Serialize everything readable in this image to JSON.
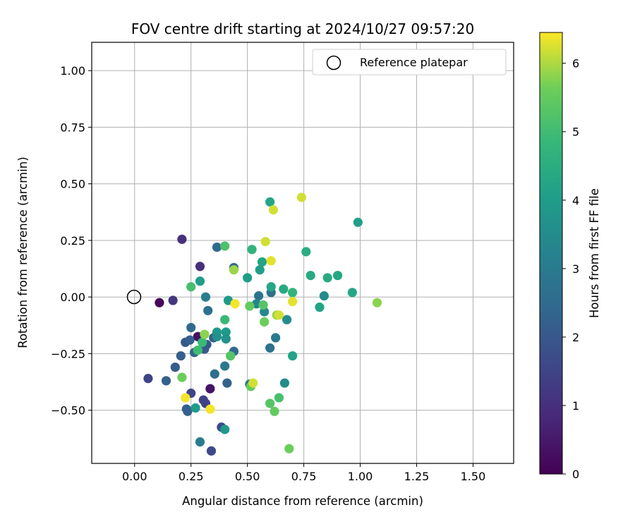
{
  "chart_data": {
    "type": "scatter",
    "title": "FOV centre drift starting at 2024/10/27 09:57:20",
    "xlabel": "Angular distance from reference (arcmin)",
    "ylabel": "Rotation from reference (arcmin)",
    "xlim": [
      -0.19,
      1.68
    ],
    "ylim": [
      -0.735,
      1.125
    ],
    "x_ticks": [
      0.0,
      0.25,
      0.5,
      0.75,
      1.0,
      1.25,
      1.5
    ],
    "x_tick_labels": [
      "0.00",
      "0.25",
      "0.50",
      "0.75",
      "1.00",
      "1.25",
      "1.50"
    ],
    "y_ticks": [
      -0.5,
      -0.25,
      0.0,
      0.25,
      0.5,
      0.75,
      1.0
    ],
    "y_tick_labels": [
      "−0.50",
      "−0.25",
      "0.00",
      "0.25",
      "0.50",
      "0.75",
      "1.00"
    ],
    "grid": true,
    "legend": {
      "position": "top-right",
      "entries": [
        "Reference platepar"
      ]
    },
    "reference_point": {
      "x": 0.0,
      "y": 0.0,
      "name": "Reference platepar"
    },
    "colorbar": {
      "label": "Hours from first FF file",
      "colormap": "viridis",
      "range": [
        0,
        6.45
      ],
      "ticks": [
        0,
        1,
        2,
        3,
        4,
        5,
        6
      ],
      "tick_labels": [
        "0",
        "1",
        "2",
        "3",
        "4",
        "5",
        "6"
      ]
    },
    "points": [
      {
        "x": 0.11,
        "y": -0.025,
        "h": 0.1
      },
      {
        "x": 0.28,
        "y": -0.175,
        "h": 0.3
      },
      {
        "x": 0.335,
        "y": -0.405,
        "h": 0.4
      },
      {
        "x": 0.17,
        "y": -0.015,
        "h": 1.2
      },
      {
        "x": 0.21,
        "y": 0.255,
        "h": 1.0
      },
      {
        "x": 0.29,
        "y": 0.135,
        "h": 1.0
      },
      {
        "x": 0.06,
        "y": -0.36,
        "h": 1.5
      },
      {
        "x": 0.25,
        "y": -0.425,
        "h": 1.5
      },
      {
        "x": 0.305,
        "y": -0.455,
        "h": 1.4
      },
      {
        "x": 0.315,
        "y": -0.47,
        "h": 1.4
      },
      {
        "x": 0.34,
        "y": -0.68,
        "h": 1.6
      },
      {
        "x": 0.385,
        "y": -0.575,
        "h": 1.6
      },
      {
        "x": 0.235,
        "y": -0.505,
        "h": 2.2
      },
      {
        "x": 0.23,
        "y": -0.495,
        "h": 2.2
      },
      {
        "x": 0.14,
        "y": -0.37,
        "h": 2.2
      },
      {
        "x": 0.18,
        "y": -0.31,
        "h": 2.1
      },
      {
        "x": 0.205,
        "y": -0.26,
        "h": 2.2
      },
      {
        "x": 0.225,
        "y": -0.2,
        "h": 2.0
      },
      {
        "x": 0.245,
        "y": -0.19,
        "h": 2.2
      },
      {
        "x": 0.25,
        "y": -0.135,
        "h": 2.5
      },
      {
        "x": 0.265,
        "y": -0.245,
        "h": 2.4
      },
      {
        "x": 0.31,
        "y": -0.23,
        "h": 2.1
      },
      {
        "x": 0.32,
        "y": -0.21,
        "h": 2.0
      },
      {
        "x": 0.35,
        "y": -0.18,
        "h": 2.2
      },
      {
        "x": 0.325,
        "y": -0.06,
        "h": 2.7
      },
      {
        "x": 0.315,
        "y": 0.0,
        "h": 3.1
      },
      {
        "x": 0.365,
        "y": 0.22,
        "h": 2.5
      },
      {
        "x": 0.355,
        "y": -0.34,
        "h": 2.6
      },
      {
        "x": 0.4,
        "y": -0.305,
        "h": 2.9
      },
      {
        "x": 0.41,
        "y": -0.38,
        "h": 2.3
      },
      {
        "x": 0.44,
        "y": -0.24,
        "h": 2.5
      },
      {
        "x": 0.44,
        "y": 0.13,
        "h": 2.4
      },
      {
        "x": 0.29,
        "y": -0.64,
        "h": 3.0
      },
      {
        "x": 0.55,
        "y": 0.005,
        "h": 2.8
      },
      {
        "x": 0.6,
        "y": -0.225,
        "h": 2.7
      },
      {
        "x": 0.605,
        "y": 0.02,
        "h": 2.7
      },
      {
        "x": 0.625,
        "y": -0.18,
        "h": 2.9
      },
      {
        "x": 0.51,
        "y": -0.385,
        "h": 3.0
      },
      {
        "x": 0.54,
        "y": -0.03,
        "h": 3.3
      },
      {
        "x": 0.575,
        "y": -0.065,
        "h": 3.4
      },
      {
        "x": 0.665,
        "y": -0.38,
        "h": 3.5
      },
      {
        "x": 0.675,
        "y": -0.1,
        "h": 3.5
      },
      {
        "x": 0.84,
        "y": 0.005,
        "h": 3.5
      },
      {
        "x": 0.29,
        "y": 0.07,
        "h": 4.0
      },
      {
        "x": 0.365,
        "y": -0.155,
        "h": 3.9
      },
      {
        "x": 0.365,
        "y": -0.175,
        "h": 3.7
      },
      {
        "x": 0.405,
        "y": -0.155,
        "h": 3.9
      },
      {
        "x": 0.405,
        "y": -0.185,
        "h": 3.7
      },
      {
        "x": 0.415,
        "y": -0.015,
        "h": 3.9
      },
      {
        "x": 0.4,
        "y": -0.585,
        "h": 3.9
      },
      {
        "x": 0.27,
        "y": -0.49,
        "h": 4.0
      },
      {
        "x": 0.5,
        "y": 0.085,
        "h": 4.0
      },
      {
        "x": 0.555,
        "y": 0.12,
        "h": 4.1
      },
      {
        "x": 0.565,
        "y": 0.155,
        "h": 4.2
      },
      {
        "x": 0.6,
        "y": 0.42,
        "h": 4.3
      },
      {
        "x": 0.605,
        "y": 0.045,
        "h": 4.3
      },
      {
        "x": 0.66,
        "y": 0.035,
        "h": 4.4
      },
      {
        "x": 0.7,
        "y": -0.26,
        "h": 4.2
      },
      {
        "x": 0.82,
        "y": -0.045,
        "h": 4.2
      },
      {
        "x": 0.99,
        "y": 0.33,
        "h": 4.1
      },
      {
        "x": 0.965,
        "y": 0.02,
        "h": 4.3
      },
      {
        "x": 0.9,
        "y": 0.095,
        "h": 4.3
      },
      {
        "x": 0.855,
        "y": 0.085,
        "h": 4.4
      },
      {
        "x": 0.78,
        "y": 0.095,
        "h": 4.4
      },
      {
        "x": 0.76,
        "y": 0.2,
        "h": 4.5
      },
      {
        "x": 0.7,
        "y": 0.02,
        "h": 4.7
      },
      {
        "x": 0.52,
        "y": 0.21,
        "h": 4.7
      },
      {
        "x": 0.4,
        "y": -0.1,
        "h": 4.9
      },
      {
        "x": 0.3,
        "y": -0.2,
        "h": 4.9
      },
      {
        "x": 0.28,
        "y": -0.235,
        "h": 5.0
      },
      {
        "x": 0.25,
        "y": 0.045,
        "h": 5.1
      },
      {
        "x": 0.4,
        "y": 0.225,
        "h": 5.2
      },
      {
        "x": 0.425,
        "y": -0.26,
        "h": 5.3
      },
      {
        "x": 0.51,
        "y": -0.04,
        "h": 5.5
      },
      {
        "x": 0.515,
        "y": -0.395,
        "h": 5.5
      },
      {
        "x": 0.57,
        "y": -0.035,
        "h": 5.3
      },
      {
        "x": 0.575,
        "y": -0.11,
        "h": 5.6
      },
      {
        "x": 0.6,
        "y": -0.47,
        "h": 5.3
      },
      {
        "x": 0.62,
        "y": -0.505,
        "h": 5.5
      },
      {
        "x": 0.64,
        "y": -0.445,
        "h": 5.1
      },
      {
        "x": 0.685,
        "y": -0.67,
        "h": 5.6
      },
      {
        "x": 0.21,
        "y": -0.355,
        "h": 5.6
      },
      {
        "x": 0.31,
        "y": -0.165,
        "h": 5.8
      },
      {
        "x": 0.44,
        "y": 0.12,
        "h": 5.9
      },
      {
        "x": 0.63,
        "y": -0.08,
        "h": 5.9
      },
      {
        "x": 1.075,
        "y": -0.025,
        "h": 5.8
      },
      {
        "x": 0.615,
        "y": 0.385,
        "h": 6.2
      },
      {
        "x": 0.58,
        "y": 0.245,
        "h": 6.2
      },
      {
        "x": 0.605,
        "y": 0.16,
        "h": 6.3
      },
      {
        "x": 0.74,
        "y": 0.44,
        "h": 6.2
      },
      {
        "x": 0.64,
        "y": -0.08,
        "h": 6.2
      },
      {
        "x": 0.7,
        "y": -0.02,
        "h": 6.3
      },
      {
        "x": 0.525,
        "y": -0.38,
        "h": 6.2
      },
      {
        "x": 0.445,
        "y": -0.03,
        "h": 6.4
      },
      {
        "x": 0.225,
        "y": -0.445,
        "h": 6.4
      },
      {
        "x": 0.335,
        "y": -0.495,
        "h": 6.4
      }
    ]
  }
}
